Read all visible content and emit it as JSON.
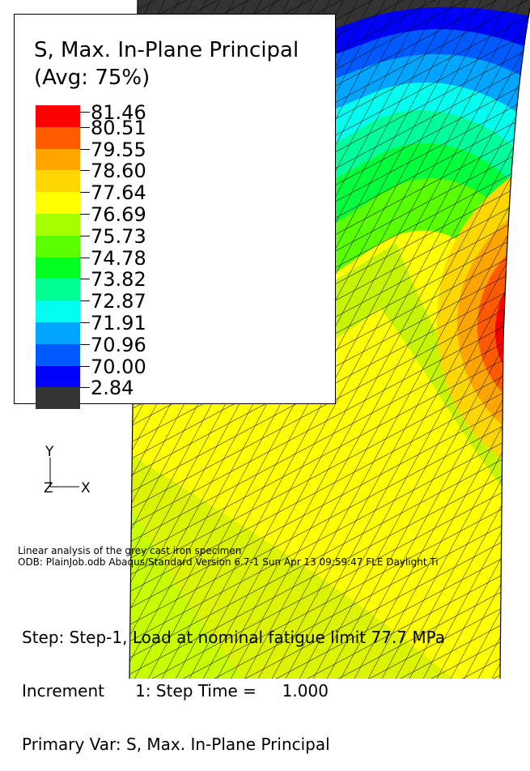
{
  "legend": {
    "title": "S, Max. In-Plane Principal",
    "subtitle": "(Avg: 75%)",
    "levels": [
      {
        "label": "81.46",
        "color": "#ff0000"
      },
      {
        "label": "80.51",
        "color": "#ff5a00"
      },
      {
        "label": "79.55",
        "color": "#ffa500"
      },
      {
        "label": "78.60",
        "color": "#ffd700"
      },
      {
        "label": "77.64",
        "color": "#ffff00"
      },
      {
        "label": "76.69",
        "color": "#a5ff00"
      },
      {
        "label": "75.73",
        "color": "#5aff00"
      },
      {
        "label": "74.78",
        "color": "#00ff20"
      },
      {
        "label": "73.82",
        "color": "#00ff90"
      },
      {
        "label": "72.87",
        "color": "#00ffee"
      },
      {
        "label": "71.91",
        "color": "#00a5ff"
      },
      {
        "label": "70.96",
        "color": "#005aff"
      },
      {
        "label": "70.00",
        "color": "#0000ff"
      },
      {
        "label": "2.84",
        "color": "#333333"
      }
    ]
  },
  "triad": {
    "y_label": "Y",
    "z_label": "Z",
    "x_label": "X"
  },
  "info": {
    "line1": "Linear analysis of the grey cast iron specimen",
    "line2": "ODB: PlainJob.odb    Abaqus/Standard Version 6.7-1    Sun Apr 13 09:59:47 FLE Daylight Ti"
  },
  "status": {
    "step": "Step: Step-1, Load at nominal fatigue limit 77.7 MPa",
    "increment": "Increment      1: Step Time =     1.000",
    "primary": "Primary Var: S, Max. In-Plane Principal"
  }
}
